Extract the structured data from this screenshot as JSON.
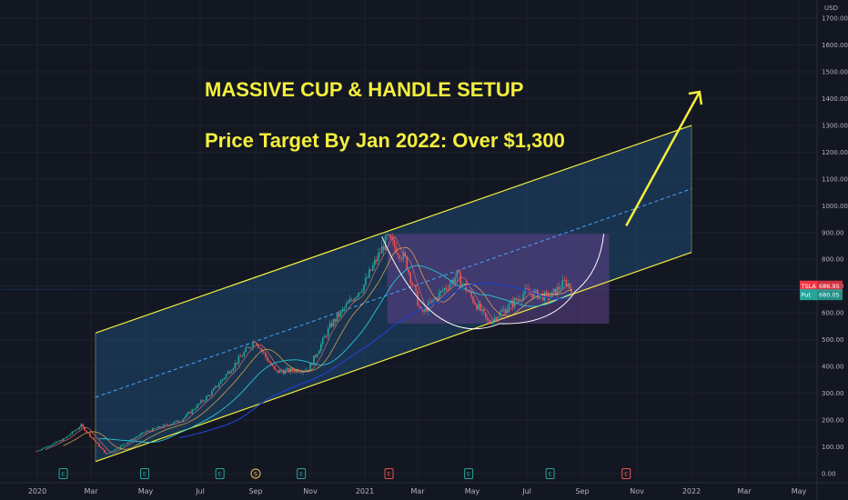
{
  "chart_data": {
    "type": "candlestick",
    "currency": "USD",
    "annotations": [
      "MASSIVE CUP & HANDLE SETUP",
      "Price Target By Jan 2022: Over $1,300"
    ],
    "ylim": [
      0,
      1750
    ],
    "y_ticks": [
      "1700.00",
      "1600.00",
      "1500.00",
      "1400.00",
      "1300.00",
      "1200.00",
      "1100.00",
      "1000.00",
      "900.00",
      "800.00",
      "700.00",
      "600.00",
      "500.00",
      "400.00",
      "300.00",
      "200.00",
      "100.00",
      "0.00"
    ],
    "x_ticks": [
      "2020",
      "Mar",
      "May",
      "Jul",
      "Sep",
      "Nov",
      "2021",
      "Mar",
      "May",
      "Jul",
      "Sep",
      "Nov",
      "2022",
      "Mar",
      "May"
    ],
    "price_tags": [
      {
        "label": "TSLA",
        "value": "686.95",
        "color": "#f23645"
      },
      {
        "label": "Put",
        "value": "680.05",
        "color": "#26a69a"
      }
    ],
    "event_markers": [
      "E",
      "E",
      "E",
      "S",
      "E",
      "E",
      "E",
      "E",
      "E"
    ],
    "price_path": [
      [
        "2019-12-31",
        84
      ],
      [
        "2020-01-31",
        130
      ],
      [
        "2020-02-19",
        180
      ],
      [
        "2020-03-18",
        72
      ],
      [
        "2020-04-30",
        155
      ],
      [
        "2020-06-10",
        200
      ],
      [
        "2020-07-13",
        300
      ],
      [
        "2020-08-31",
        500
      ],
      [
        "2020-09-23",
        380
      ],
      [
        "2020-10-30",
        390
      ],
      [
        "2020-11-24",
        555
      ],
      [
        "2020-12-31",
        705
      ],
      [
        "2021-01-26",
        880
      ],
      [
        "2021-02-15",
        800
      ],
      [
        "2021-03-05",
        597
      ],
      [
        "2021-04-14",
        740
      ],
      [
        "2021-05-19",
        563
      ],
      [
        "2021-06-30",
        679
      ],
      [
        "2021-07-26",
        657
      ],
      [
        "2021-08-13",
        717
      ],
      [
        "2021-08-20",
        686.95
      ]
    ],
    "trendline_drawing": "ascending channel with dashed midline, cup-shaped arc and a projected upward arrow",
    "colors": {
      "up": "#26a69a",
      "down": "#ef5350",
      "channel": "#f5ef3d",
      "channel_fill": "#1f4a73",
      "cup_fill": "#5a3f84",
      "text": "#f5ef3d"
    }
  }
}
